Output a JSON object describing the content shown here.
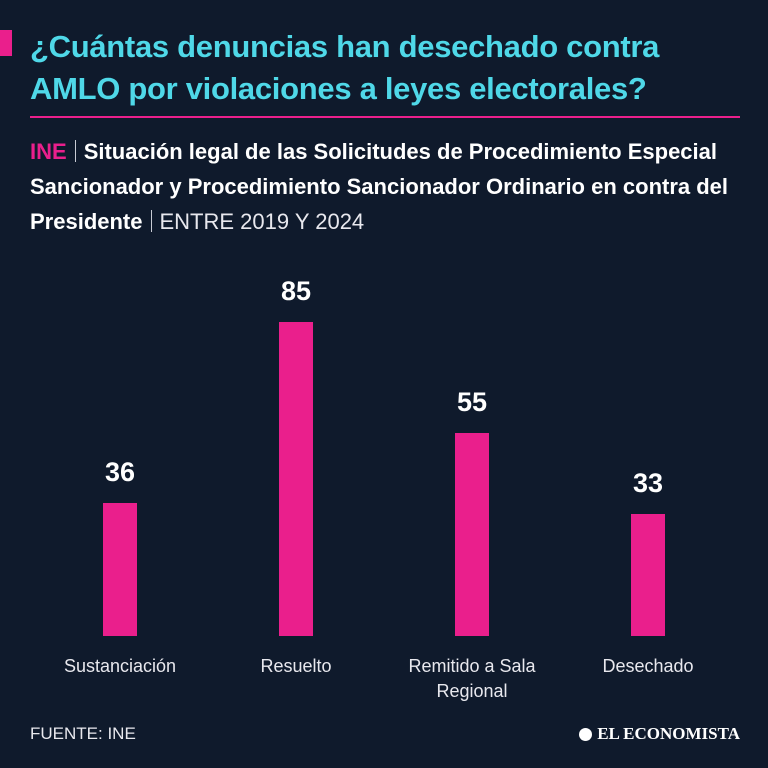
{
  "chart_data": {
    "type": "bar",
    "title": "¿Cuántas denuncias han desechado contra AMLO por violaciones a leyes electorales?",
    "source_tag": "INE",
    "subtitle": "Situación legal de las Solicitudes de Procedimiento Especial Sancionador y Procedimiento Sancionador Ordinario en contra del Presidente",
    "period": "ENTRE 2019 Y 2024",
    "categories": [
      "Sustanciación",
      "Resuelto",
      "Remitido a Sala Regional",
      "Desechado"
    ],
    "values": [
      36,
      85,
      55,
      33
    ],
    "color": "#ea1f8c",
    "source": "FUENTE: INE",
    "brand": "EL ECONOMISTA"
  }
}
